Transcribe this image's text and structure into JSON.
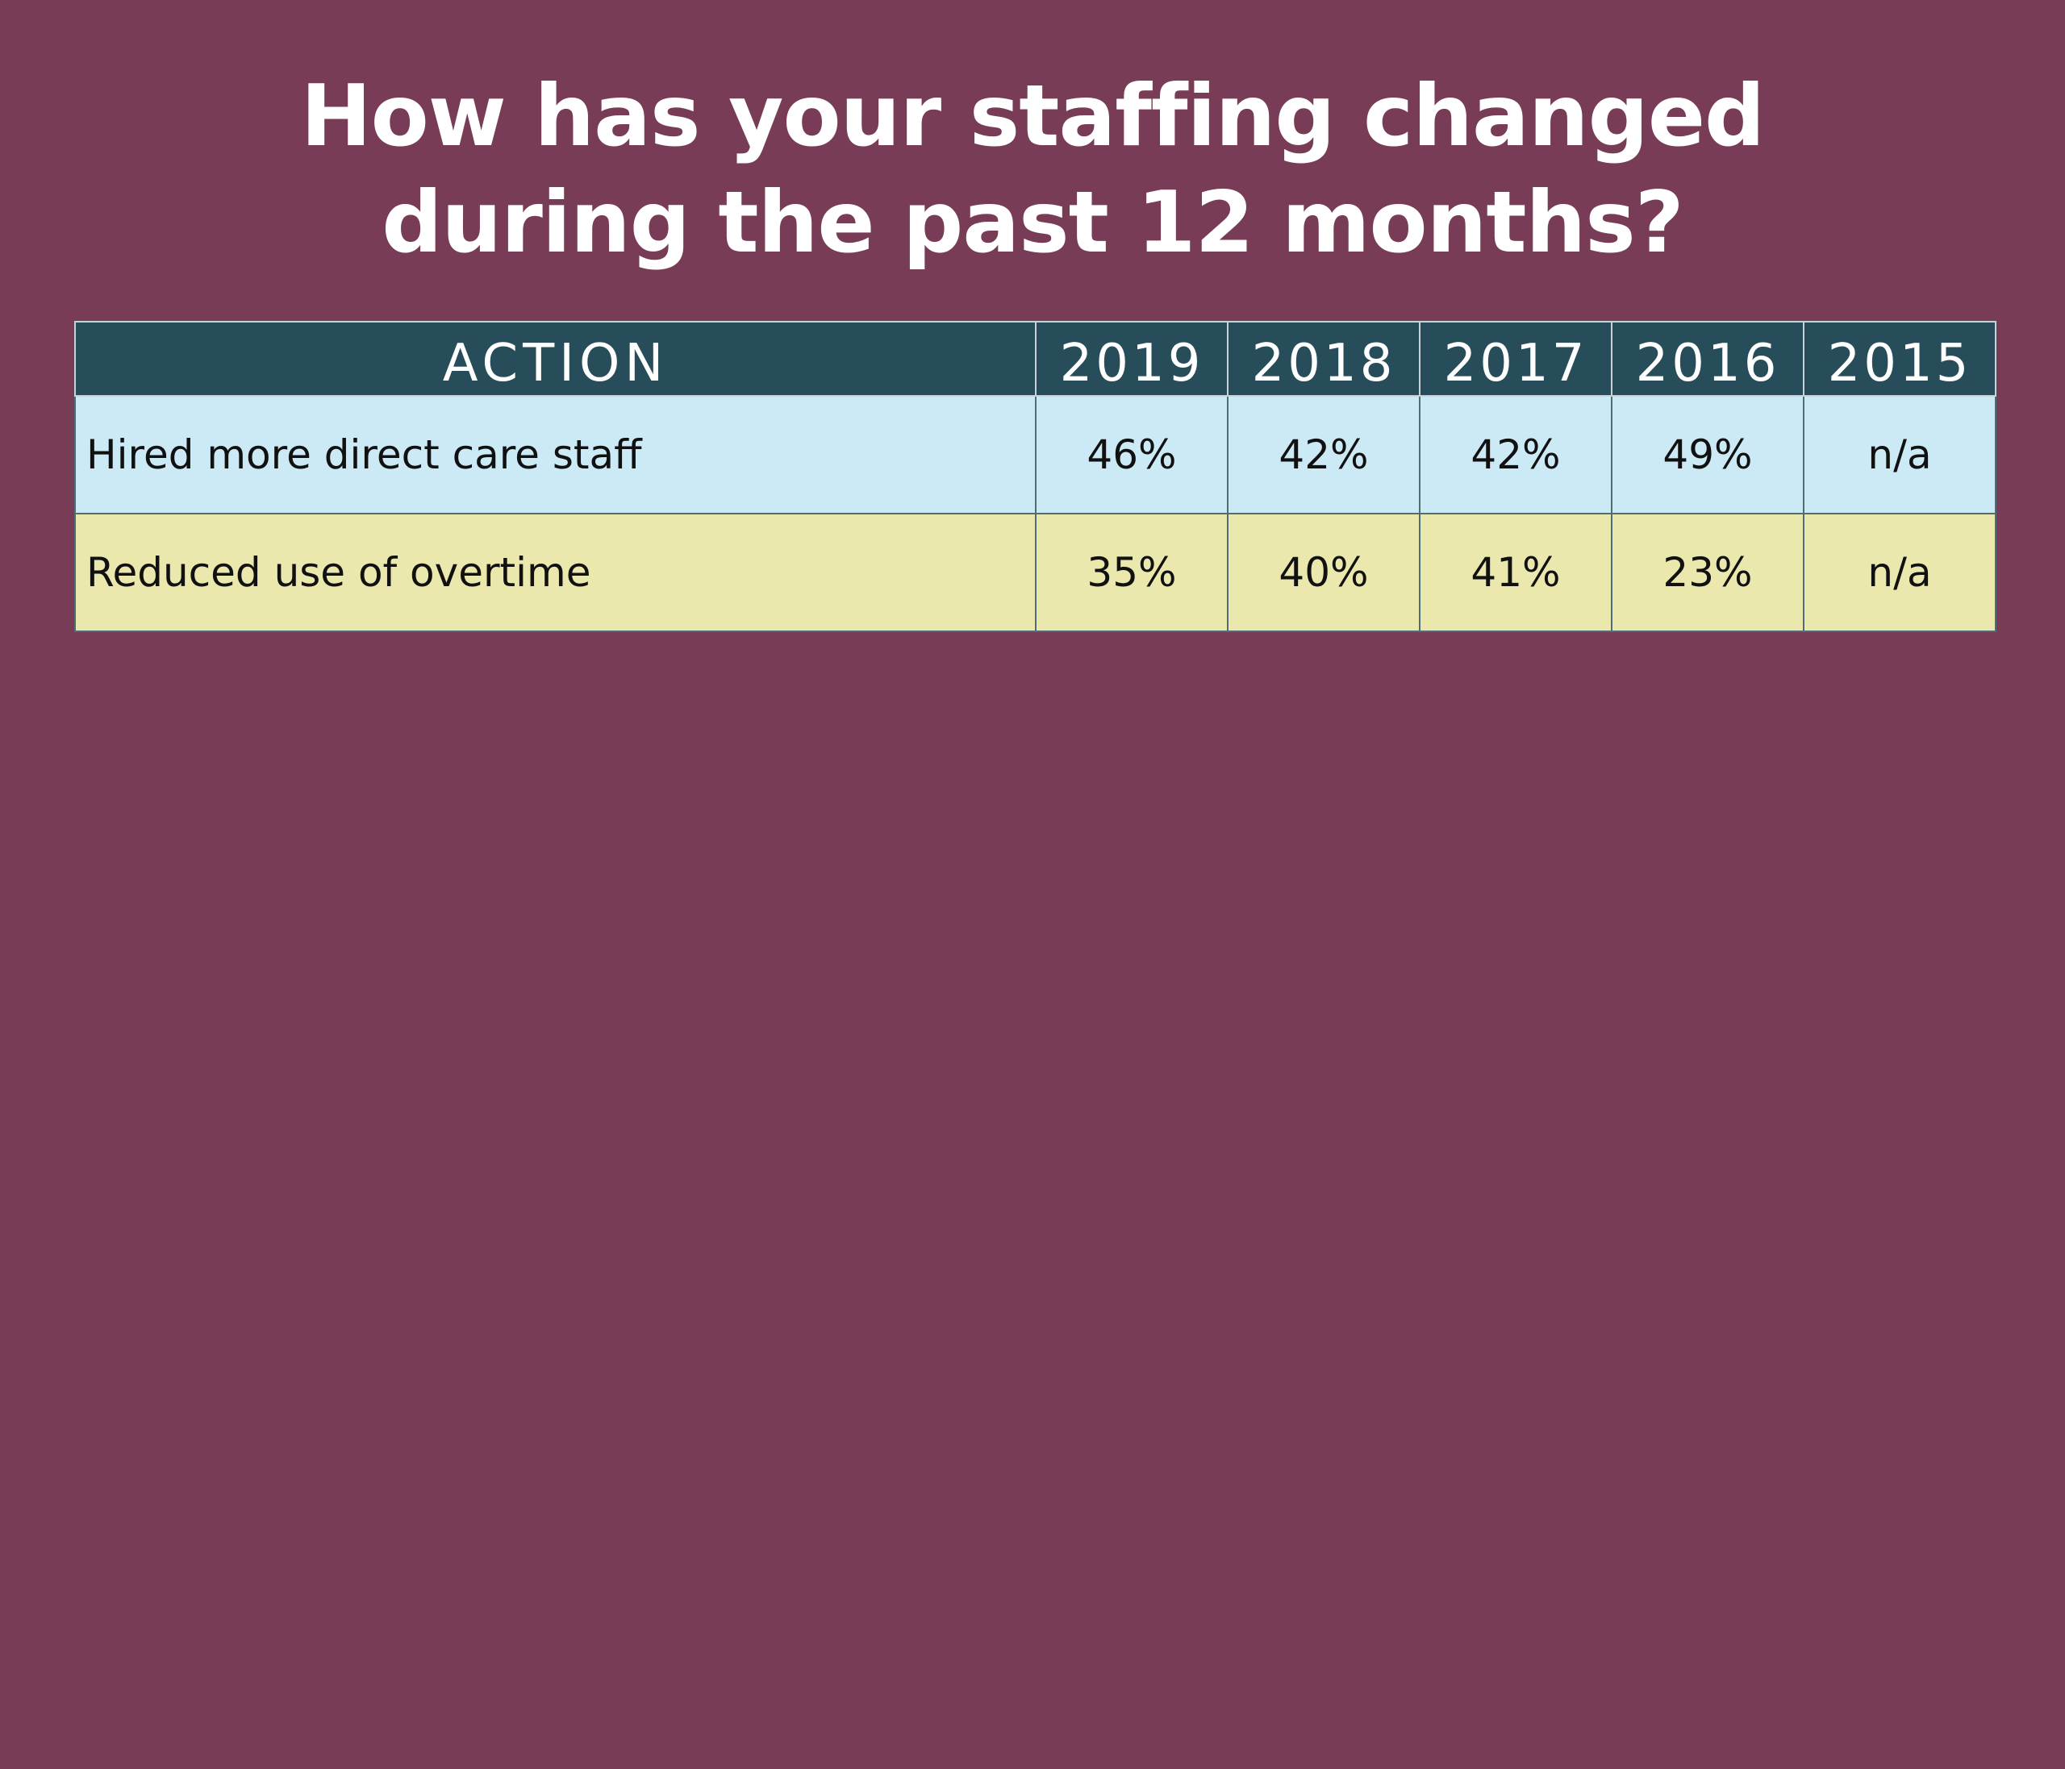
{
  "title": {
    "line1": "How has your staffing changed",
    "line2": "during the past 12 months?"
  },
  "colors": {
    "background": "#793c56",
    "header": "#264d59",
    "row_blue": "#cbeaf6",
    "row_yellow": "#eae8ac"
  },
  "chart_data": {
    "type": "table",
    "title": "How has your staffing changed during the past 12 months?",
    "columns": [
      "ACTION",
      "2019",
      "2018",
      "2017",
      "2016",
      "2015"
    ],
    "rows": [
      [
        "Hired more direct care staff",
        "46%",
        "42%",
        "42%",
        "49%",
        "n/a"
      ],
      [
        "Reduced use of overtime",
        "35%",
        "40%",
        "41%",
        "23%",
        "n/a"
      ]
    ]
  }
}
